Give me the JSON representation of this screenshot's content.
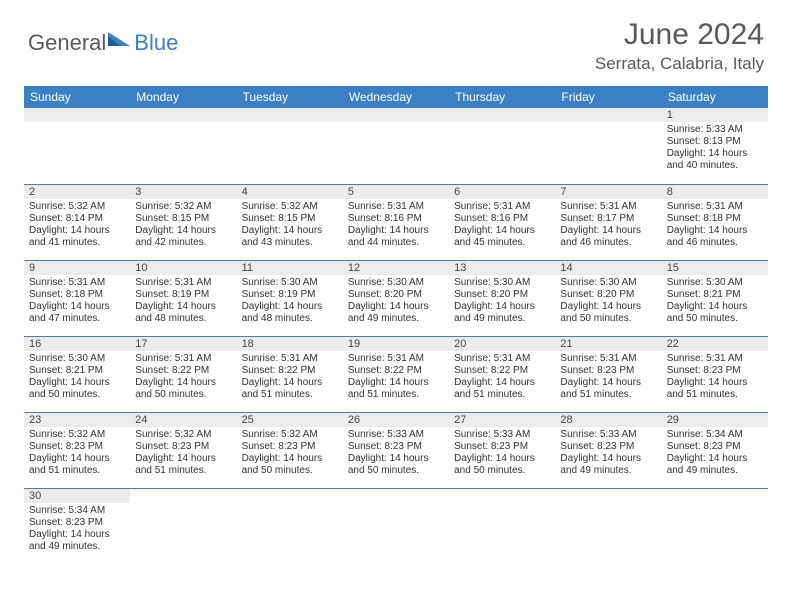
{
  "logo": {
    "part1": "General",
    "part2": "Blue"
  },
  "header": {
    "month_title": "June 2024",
    "location": "Serrata, Calabria, Italy"
  },
  "colors": {
    "brand_blue": "#3b7fc4",
    "header_bg": "#3b7fc4",
    "header_text": "#ffffff",
    "daynum_bg": "#ececec",
    "text": "#333333",
    "row_divider": "#3b7fc4"
  },
  "daynames": [
    "Sunday",
    "Monday",
    "Tuesday",
    "Wednesday",
    "Thursday",
    "Friday",
    "Saturday"
  ],
  "weeks": [
    [
      null,
      null,
      null,
      null,
      null,
      null,
      {
        "n": "1",
        "sr": "Sunrise: 5:33 AM",
        "ss": "Sunset: 8:13 PM",
        "d1": "Daylight: 14 hours",
        "d2": "and 40 minutes."
      }
    ],
    [
      {
        "n": "2",
        "sr": "Sunrise: 5:32 AM",
        "ss": "Sunset: 8:14 PM",
        "d1": "Daylight: 14 hours",
        "d2": "and 41 minutes."
      },
      {
        "n": "3",
        "sr": "Sunrise: 5:32 AM",
        "ss": "Sunset: 8:15 PM",
        "d1": "Daylight: 14 hours",
        "d2": "and 42 minutes."
      },
      {
        "n": "4",
        "sr": "Sunrise: 5:32 AM",
        "ss": "Sunset: 8:15 PM",
        "d1": "Daylight: 14 hours",
        "d2": "and 43 minutes."
      },
      {
        "n": "5",
        "sr": "Sunrise: 5:31 AM",
        "ss": "Sunset: 8:16 PM",
        "d1": "Daylight: 14 hours",
        "d2": "and 44 minutes."
      },
      {
        "n": "6",
        "sr": "Sunrise: 5:31 AM",
        "ss": "Sunset: 8:16 PM",
        "d1": "Daylight: 14 hours",
        "d2": "and 45 minutes."
      },
      {
        "n": "7",
        "sr": "Sunrise: 5:31 AM",
        "ss": "Sunset: 8:17 PM",
        "d1": "Daylight: 14 hours",
        "d2": "and 46 minutes."
      },
      {
        "n": "8",
        "sr": "Sunrise: 5:31 AM",
        "ss": "Sunset: 8:18 PM",
        "d1": "Daylight: 14 hours",
        "d2": "and 46 minutes."
      }
    ],
    [
      {
        "n": "9",
        "sr": "Sunrise: 5:31 AM",
        "ss": "Sunset: 8:18 PM",
        "d1": "Daylight: 14 hours",
        "d2": "and 47 minutes."
      },
      {
        "n": "10",
        "sr": "Sunrise: 5:31 AM",
        "ss": "Sunset: 8:19 PM",
        "d1": "Daylight: 14 hours",
        "d2": "and 48 minutes."
      },
      {
        "n": "11",
        "sr": "Sunrise: 5:30 AM",
        "ss": "Sunset: 8:19 PM",
        "d1": "Daylight: 14 hours",
        "d2": "and 48 minutes."
      },
      {
        "n": "12",
        "sr": "Sunrise: 5:30 AM",
        "ss": "Sunset: 8:20 PM",
        "d1": "Daylight: 14 hours",
        "d2": "and 49 minutes."
      },
      {
        "n": "13",
        "sr": "Sunrise: 5:30 AM",
        "ss": "Sunset: 8:20 PM",
        "d1": "Daylight: 14 hours",
        "d2": "and 49 minutes."
      },
      {
        "n": "14",
        "sr": "Sunrise: 5:30 AM",
        "ss": "Sunset: 8:20 PM",
        "d1": "Daylight: 14 hours",
        "d2": "and 50 minutes."
      },
      {
        "n": "15",
        "sr": "Sunrise: 5:30 AM",
        "ss": "Sunset: 8:21 PM",
        "d1": "Daylight: 14 hours",
        "d2": "and 50 minutes."
      }
    ],
    [
      {
        "n": "16",
        "sr": "Sunrise: 5:30 AM",
        "ss": "Sunset: 8:21 PM",
        "d1": "Daylight: 14 hours",
        "d2": "and 50 minutes."
      },
      {
        "n": "17",
        "sr": "Sunrise: 5:31 AM",
        "ss": "Sunset: 8:22 PM",
        "d1": "Daylight: 14 hours",
        "d2": "and 50 minutes."
      },
      {
        "n": "18",
        "sr": "Sunrise: 5:31 AM",
        "ss": "Sunset: 8:22 PM",
        "d1": "Daylight: 14 hours",
        "d2": "and 51 minutes."
      },
      {
        "n": "19",
        "sr": "Sunrise: 5:31 AM",
        "ss": "Sunset: 8:22 PM",
        "d1": "Daylight: 14 hours",
        "d2": "and 51 minutes."
      },
      {
        "n": "20",
        "sr": "Sunrise: 5:31 AM",
        "ss": "Sunset: 8:22 PM",
        "d1": "Daylight: 14 hours",
        "d2": "and 51 minutes."
      },
      {
        "n": "21",
        "sr": "Sunrise: 5:31 AM",
        "ss": "Sunset: 8:23 PM",
        "d1": "Daylight: 14 hours",
        "d2": "and 51 minutes."
      },
      {
        "n": "22",
        "sr": "Sunrise: 5:31 AM",
        "ss": "Sunset: 8:23 PM",
        "d1": "Daylight: 14 hours",
        "d2": "and 51 minutes."
      }
    ],
    [
      {
        "n": "23",
        "sr": "Sunrise: 5:32 AM",
        "ss": "Sunset: 8:23 PM",
        "d1": "Daylight: 14 hours",
        "d2": "and 51 minutes."
      },
      {
        "n": "24",
        "sr": "Sunrise: 5:32 AM",
        "ss": "Sunset: 8:23 PM",
        "d1": "Daylight: 14 hours",
        "d2": "and 51 minutes."
      },
      {
        "n": "25",
        "sr": "Sunrise: 5:32 AM",
        "ss": "Sunset: 8:23 PM",
        "d1": "Daylight: 14 hours",
        "d2": "and 50 minutes."
      },
      {
        "n": "26",
        "sr": "Sunrise: 5:33 AM",
        "ss": "Sunset: 8:23 PM",
        "d1": "Daylight: 14 hours",
        "d2": "and 50 minutes."
      },
      {
        "n": "27",
        "sr": "Sunrise: 5:33 AM",
        "ss": "Sunset: 8:23 PM",
        "d1": "Daylight: 14 hours",
        "d2": "and 50 minutes."
      },
      {
        "n": "28",
        "sr": "Sunrise: 5:33 AM",
        "ss": "Sunset: 8:23 PM",
        "d1": "Daylight: 14 hours",
        "d2": "and 49 minutes."
      },
      {
        "n": "29",
        "sr": "Sunrise: 5:34 AM",
        "ss": "Sunset: 8:23 PM",
        "d1": "Daylight: 14 hours",
        "d2": "and 49 minutes."
      }
    ],
    [
      {
        "n": "30",
        "sr": "Sunrise: 5:34 AM",
        "ss": "Sunset: 8:23 PM",
        "d1": "Daylight: 14 hours",
        "d2": "and 49 minutes."
      },
      null,
      null,
      null,
      null,
      null,
      null
    ]
  ]
}
